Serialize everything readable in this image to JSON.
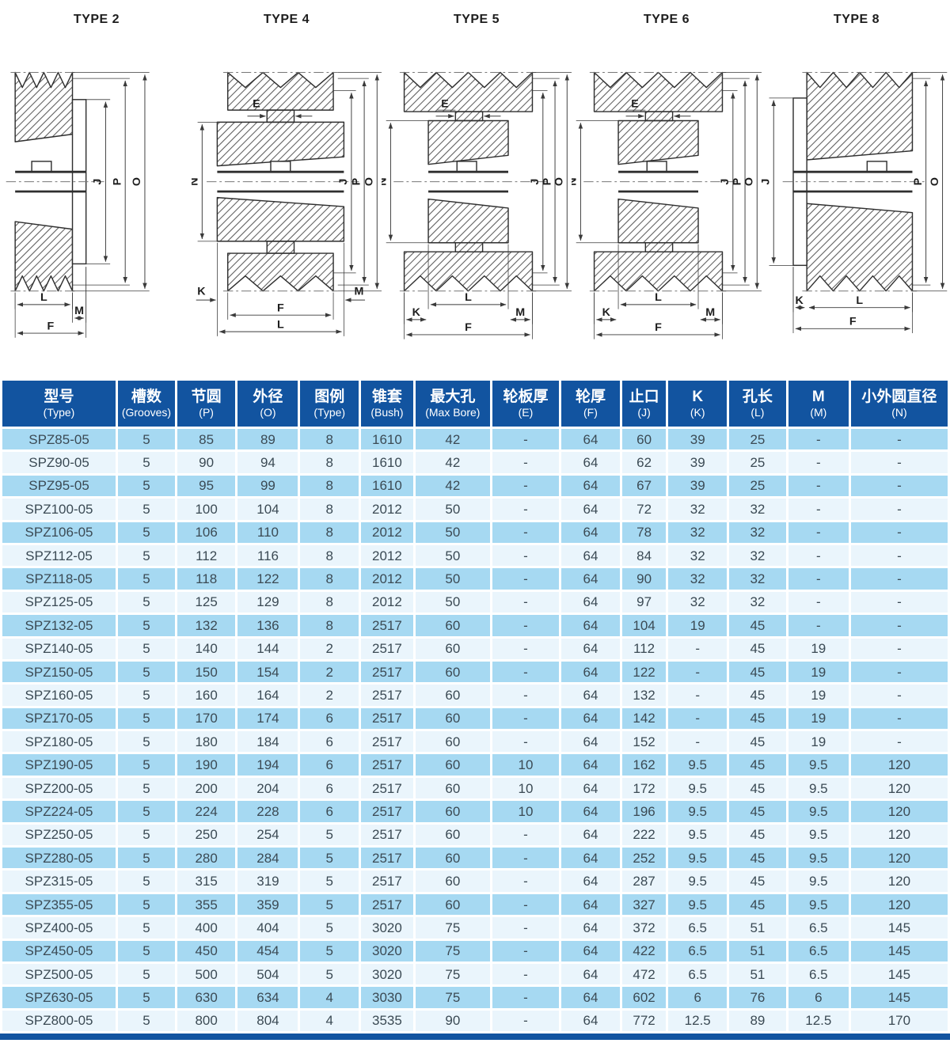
{
  "drawings": [
    {
      "title": "TYPE 2",
      "labels": {
        "j": "J",
        "p": "P",
        "o": "O",
        "l": "L",
        "m": "M",
        "f": "F"
      }
    },
    {
      "title": "TYPE 4",
      "labels": {
        "e": "E",
        "n": "N",
        "j": "J",
        "p": "P",
        "o": "O",
        "k": "K",
        "f": "F",
        "m": "M",
        "l": "L"
      }
    },
    {
      "title": "TYPE 5",
      "labels": {
        "e": "E",
        "n": "N",
        "j": "J",
        "p": "P",
        "o": "O",
        "k": "K",
        "l": "L",
        "m": "M",
        "f": "F"
      }
    },
    {
      "title": "TYPE 6",
      "labels": {
        "e": "E",
        "n": "N",
        "j": "J",
        "p": "P",
        "o": "O",
        "k": "K",
        "l": "L",
        "m": "M",
        "f": "F"
      }
    },
    {
      "title": "TYPE 8",
      "labels": {
        "j": "J",
        "p": "P",
        "o": "O",
        "k": "K",
        "l": "L",
        "f": "F"
      }
    }
  ],
  "table": {
    "columns": [
      {
        "cn": "型号",
        "en": "(Type)"
      },
      {
        "cn": "槽数",
        "en": "(Grooves)"
      },
      {
        "cn": "节圆",
        "en": "(P)"
      },
      {
        "cn": "外径",
        "en": "(O)"
      },
      {
        "cn": "图例",
        "en": "(Type)"
      },
      {
        "cn": "锥套",
        "en": "(Bush)"
      },
      {
        "cn": "最大孔",
        "en": "(Max Bore)"
      },
      {
        "cn": "轮板厚",
        "en": "(E)"
      },
      {
        "cn": "轮厚",
        "en": "(F)"
      },
      {
        "cn": "止口",
        "en": "(J)"
      },
      {
        "cn": "K",
        "en": "(K)"
      },
      {
        "cn": "孔长",
        "en": "(L)"
      },
      {
        "cn": "M",
        "en": "(M)"
      },
      {
        "cn": "小外圆直径",
        "en": "(N)"
      }
    ],
    "rows": [
      [
        "SPZ85-05",
        "5",
        "85",
        "89",
        "8",
        "1610",
        "42",
        "-",
        "64",
        "60",
        "39",
        "25",
        "-",
        "-"
      ],
      [
        "SPZ90-05",
        "5",
        "90",
        "94",
        "8",
        "1610",
        "42",
        "-",
        "64",
        "62",
        "39",
        "25",
        "-",
        "-"
      ],
      [
        "SPZ95-05",
        "5",
        "95",
        "99",
        "8",
        "1610",
        "42",
        "-",
        "64",
        "67",
        "39",
        "25",
        "-",
        "-"
      ],
      [
        "SPZ100-05",
        "5",
        "100",
        "104",
        "8",
        "2012",
        "50",
        "-",
        "64",
        "72",
        "32",
        "32",
        "-",
        "-"
      ],
      [
        "SPZ106-05",
        "5",
        "106",
        "110",
        "8",
        "2012",
        "50",
        "-",
        "64",
        "78",
        "32",
        "32",
        "-",
        "-"
      ],
      [
        "SPZ112-05",
        "5",
        "112",
        "116",
        "8",
        "2012",
        "50",
        "-",
        "64",
        "84",
        "32",
        "32",
        "-",
        "-"
      ],
      [
        "SPZ118-05",
        "5",
        "118",
        "122",
        "8",
        "2012",
        "50",
        "-",
        "64",
        "90",
        "32",
        "32",
        "-",
        "-"
      ],
      [
        "SPZ125-05",
        "5",
        "125",
        "129",
        "8",
        "2012",
        "50",
        "-",
        "64",
        "97",
        "32",
        "32",
        "-",
        "-"
      ],
      [
        "SPZ132-05",
        "5",
        "132",
        "136",
        "8",
        "2517",
        "60",
        "-",
        "64",
        "104",
        "19",
        "45",
        "-",
        "-"
      ],
      [
        "SPZ140-05",
        "5",
        "140",
        "144",
        "2",
        "2517",
        "60",
        "-",
        "64",
        "112",
        "-",
        "45",
        "19",
        "-"
      ],
      [
        "SPZ150-05",
        "5",
        "150",
        "154",
        "2",
        "2517",
        "60",
        "-",
        "64",
        "122",
        "-",
        "45",
        "19",
        "-"
      ],
      [
        "SPZ160-05",
        "5",
        "160",
        "164",
        "2",
        "2517",
        "60",
        "-",
        "64",
        "132",
        "-",
        "45",
        "19",
        "-"
      ],
      [
        "SPZ170-05",
        "5",
        "170",
        "174",
        "6",
        "2517",
        "60",
        "-",
        "64",
        "142",
        "-",
        "45",
        "19",
        "-"
      ],
      [
        "SPZ180-05",
        "5",
        "180",
        "184",
        "6",
        "2517",
        "60",
        "-",
        "64",
        "152",
        "-",
        "45",
        "19",
        "-"
      ],
      [
        "SPZ190-05",
        "5",
        "190",
        "194",
        "6",
        "2517",
        "60",
        "10",
        "64",
        "162",
        "9.5",
        "45",
        "9.5",
        "120"
      ],
      [
        "SPZ200-05",
        "5",
        "200",
        "204",
        "6",
        "2517",
        "60",
        "10",
        "64",
        "172",
        "9.5",
        "45",
        "9.5",
        "120"
      ],
      [
        "SPZ224-05",
        "5",
        "224",
        "228",
        "6",
        "2517",
        "60",
        "10",
        "64",
        "196",
        "9.5",
        "45",
        "9.5",
        "120"
      ],
      [
        "SPZ250-05",
        "5",
        "250",
        "254",
        "5",
        "2517",
        "60",
        "-",
        "64",
        "222",
        "9.5",
        "45",
        "9.5",
        "120"
      ],
      [
        "SPZ280-05",
        "5",
        "280",
        "284",
        "5",
        "2517",
        "60",
        "-",
        "64",
        "252",
        "9.5",
        "45",
        "9.5",
        "120"
      ],
      [
        "SPZ315-05",
        "5",
        "315",
        "319",
        "5",
        "2517",
        "60",
        "-",
        "64",
        "287",
        "9.5",
        "45",
        "9.5",
        "120"
      ],
      [
        "SPZ355-05",
        "5",
        "355",
        "359",
        "5",
        "2517",
        "60",
        "-",
        "64",
        "327",
        "9.5",
        "45",
        "9.5",
        "120"
      ],
      [
        "SPZ400-05",
        "5",
        "400",
        "404",
        "5",
        "3020",
        "75",
        "-",
        "64",
        "372",
        "6.5",
        "51",
        "6.5",
        "145"
      ],
      [
        "SPZ450-05",
        "5",
        "450",
        "454",
        "5",
        "3020",
        "75",
        "-",
        "64",
        "422",
        "6.5",
        "51",
        "6.5",
        "145"
      ],
      [
        "SPZ500-05",
        "5",
        "500",
        "504",
        "5",
        "3020",
        "75",
        "-",
        "64",
        "472",
        "6.5",
        "51",
        "6.5",
        "145"
      ],
      [
        "SPZ630-05",
        "5",
        "630",
        "634",
        "4",
        "3030",
        "75",
        "-",
        "64",
        "602",
        "6",
        "76",
        "6",
        "145"
      ],
      [
        "SPZ800-05",
        "5",
        "800",
        "804",
        "4",
        "3535",
        "90",
        "-",
        "64",
        "772",
        "12.5",
        "89",
        "12.5",
        "170"
      ]
    ]
  },
  "colors": {
    "header_bg": "#1254A0",
    "row_alt": "#A6D9F2",
    "row_base": "#EAF5FC",
    "bar": "#1254A0",
    "line": "#2f2f2f"
  }
}
